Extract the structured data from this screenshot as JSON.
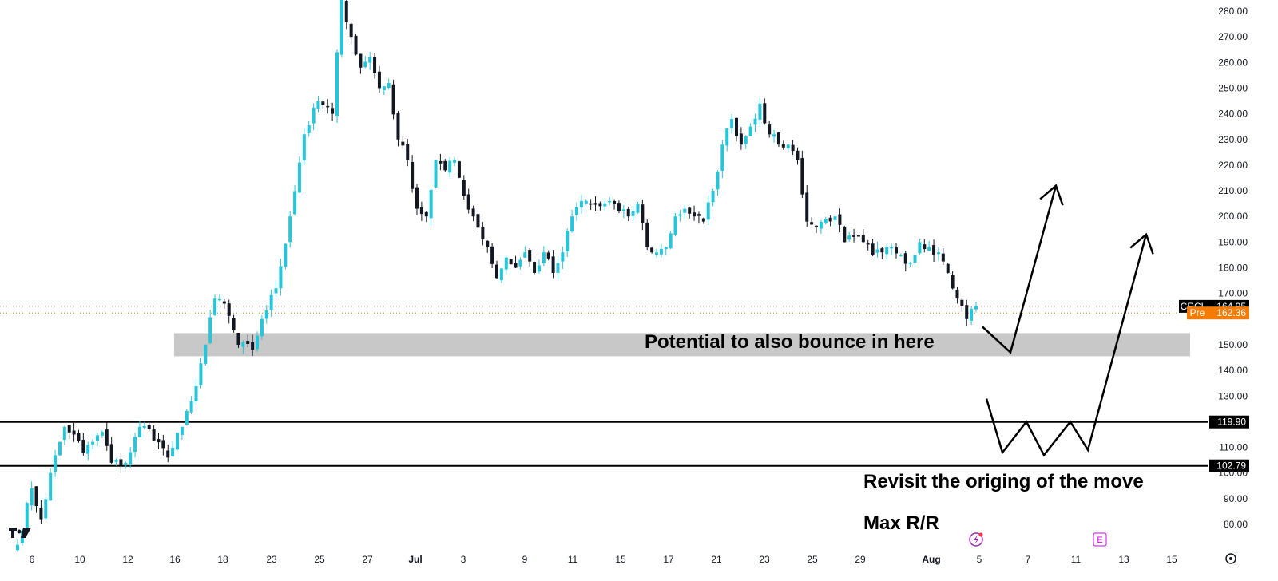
{
  "chart_data": {
    "type": "candlestick",
    "symbol": "CRCL",
    "y_axis": {
      "ticks": [
        "280.00",
        "270.00",
        "260.00",
        "250.00",
        "240.00",
        "230.00",
        "220.00",
        "210.00",
        "200.00",
        "190.00",
        "180.00",
        "170.00",
        "150.00",
        "140.00",
        "130.00",
        "110.00",
        "100.00",
        "90.00",
        "80.00"
      ],
      "ylim": [
        71,
        285
      ]
    },
    "x_axis": {
      "ticks": [
        "6",
        "10",
        "12",
        "16",
        "18",
        "23",
        "25",
        "27",
        "Jul",
        "3",
        "9",
        "11",
        "15",
        "17",
        "21",
        "23",
        "25",
        "29",
        "Aug",
        "5",
        "7",
        "11",
        "13",
        "15"
      ]
    },
    "price_labels": {
      "last": {
        "name": "CRCL",
        "value": "164.95",
        "price": 164.95,
        "color": "#000000"
      },
      "pre": {
        "name": "Pre",
        "value": "162.36",
        "price": 162.36,
        "color": "#f57c00"
      }
    },
    "levels": [
      {
        "value": "119.90",
        "price": 119.9
      },
      {
        "value": "102.79",
        "price": 102.79
      }
    ],
    "zone": {
      "low": 145.5,
      "high": 154.5,
      "label": "Potential to also bounce in here"
    },
    "annotations": [
      {
        "text": "Revisit the origing of the move"
      },
      {
        "text": "Max R/R"
      }
    ],
    "projections": [
      {
        "points": [
          [
            1230,
            157
          ],
          [
            1265,
            147
          ],
          [
            1322,
            212
          ]
        ],
        "arrowhead": "up"
      },
      {
        "points": [
          [
            1235,
            129
          ],
          [
            1255,
            108
          ],
          [
            1285,
            120
          ],
          [
            1307,
            107
          ],
          [
            1340,
            120
          ],
          [
            1362,
            109
          ],
          [
            1435,
            193
          ]
        ],
        "arrowhead": "up"
      }
    ],
    "colors": {
      "up": "#26c6da",
      "down": "#131722",
      "zone": "#c8c8c8",
      "level": "#000000"
    },
    "ohlc_anchors": [
      [
        0,
        72
      ],
      [
        3,
        94
      ],
      [
        5,
        82
      ],
      [
        7,
        100
      ],
      [
        10,
        118
      ],
      [
        12,
        115
      ],
      [
        14,
        108
      ],
      [
        18,
        116
      ],
      [
        20,
        104
      ],
      [
        23,
        104
      ],
      [
        26,
        118
      ],
      [
        28,
        117
      ],
      [
        30,
        112
      ],
      [
        32,
        106
      ],
      [
        35,
        118
      ],
      [
        37,
        128
      ],
      [
        40,
        150
      ],
      [
        42,
        168
      ],
      [
        44,
        166
      ],
      [
        47,
        150
      ],
      [
        50,
        148
      ],
      [
        52,
        160
      ],
      [
        55,
        172
      ],
      [
        58,
        200
      ],
      [
        61,
        232
      ],
      [
        64,
        245
      ],
      [
        67,
        240
      ],
      [
        69,
        285
      ],
      [
        71,
        270
      ],
      [
        73,
        258
      ],
      [
        75,
        262
      ],
      [
        77,
        250
      ],
      [
        79,
        252
      ],
      [
        81,
        230
      ],
      [
        83,
        222
      ],
      [
        85,
        203
      ],
      [
        87,
        200
      ],
      [
        89,
        222
      ],
      [
        91,
        218
      ],
      [
        93,
        222
      ],
      [
        95,
        208
      ],
      [
        97,
        200
      ],
      [
        100,
        188
      ],
      [
        102,
        176
      ],
      [
        104,
        184
      ],
      [
        106,
        180
      ],
      [
        108,
        186
      ],
      [
        110,
        178
      ],
      [
        112,
        186
      ],
      [
        114,
        178
      ],
      [
        116,
        186
      ],
      [
        118,
        200
      ],
      [
        120,
        206
      ],
      [
        122,
        205
      ],
      [
        124,
        204
      ],
      [
        126,
        206
      ],
      [
        128,
        202
      ],
      [
        130,
        200
      ],
      [
        132,
        205
      ],
      [
        134,
        188
      ],
      [
        136,
        186
      ],
      [
        138,
        188
      ],
      [
        140,
        200
      ],
      [
        142,
        203
      ],
      [
        144,
        200
      ],
      [
        146,
        198
      ],
      [
        148,
        210
      ],
      [
        150,
        228
      ],
      [
        152,
        238
      ],
      [
        154,
        228
      ],
      [
        156,
        235
      ],
      [
        158,
        244
      ],
      [
        160,
        232
      ],
      [
        162,
        228
      ],
      [
        164,
        228
      ],
      [
        166,
        222
      ],
      [
        168,
        198
      ],
      [
        170,
        196
      ],
      [
        172,
        199
      ],
      [
        174,
        200
      ],
      [
        176,
        190
      ],
      [
        178,
        192
      ],
      [
        180,
        190
      ],
      [
        182,
        185
      ],
      [
        184,
        186
      ],
      [
        186,
        188
      ],
      [
        188,
        185
      ],
      [
        190,
        182
      ],
      [
        192,
        190
      ],
      [
        194,
        188
      ],
      [
        196,
        186
      ],
      [
        198,
        178
      ],
      [
        200,
        168
      ],
      [
        202,
        160
      ],
      [
        203,
        164
      ],
      [
        204,
        165
      ]
    ],
    "bar_count": 205
  }
}
